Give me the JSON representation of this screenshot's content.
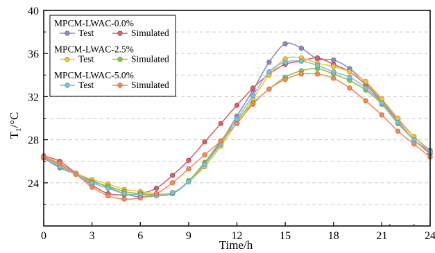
{
  "chart_data": {
    "type": "line",
    "xlabel": "Time/h",
    "ylabel": "T1/°C",
    "ylabel_main": "T",
    "ylabel_sub": "1",
    "ylabel_unit": "/°C",
    "xlim": [
      0,
      24
    ],
    "ylim": [
      20,
      40
    ],
    "xticks": [
      0,
      3,
      6,
      9,
      12,
      15,
      18,
      21,
      24
    ],
    "yticks": [
      24,
      28,
      32,
      36,
      40
    ],
    "grid": true,
    "legend_placement": "top-left",
    "x": [
      0,
      1,
      2,
      3,
      4,
      5,
      6,
      7,
      8,
      9,
      10,
      11,
      12,
      13,
      14,
      15,
      16,
      17,
      18,
      19,
      20,
      21,
      22,
      23,
      24
    ],
    "groups": [
      {
        "label": "MPCM-LWAC-0.0%",
        "series": [
          {
            "name": "Test",
            "color": "#8c8cbf",
            "values": [
              26.3,
              25.4,
              24.8,
              24.2,
              23.6,
              23.0,
              22.7,
              22.8,
              23.0,
              24.1,
              25.8,
              27.8,
              30.2,
              32.6,
              35.2,
              36.9,
              36.5,
              35.5,
              35.4,
              34.6,
              33.3,
              31.7,
              29.9,
              28.3,
              27.0
            ]
          },
          {
            "name": "Simulated",
            "color": "#d9606a",
            "values": [
              26.5,
              26.0,
              24.9,
              23.8,
              23.0,
              22.9,
              23.0,
              23.5,
              24.7,
              26.1,
              27.8,
              29.5,
              31.2,
              32.8,
              34.1,
              35.0,
              35.3,
              35.6,
              35.0,
              34.3,
              33.1,
              31.5,
              29.7,
              28.0,
              26.7
            ]
          }
        ]
      },
      {
        "label": "MPCM-LWAC-2.5%",
        "series": [
          {
            "name": "Test",
            "color": "#f2c630",
            "values": [
              26.4,
              25.6,
              24.9,
              24.3,
              23.9,
              23.4,
              23.2,
              23.0,
              23.1,
              24.1,
              25.5,
              27.4,
              29.6,
              31.8,
              34.0,
              35.5,
              35.6,
              35.1,
              34.8,
              34.3,
              33.4,
              31.8,
              30.0,
              28.3,
              26.9
            ]
          },
          {
            "name": "Simulated",
            "color": "#8cc63f",
            "values": [
              26.3,
              25.7,
              24.8,
              24.1,
              23.7,
              23.2,
              23.0,
              22.9,
              23.0,
              24.2,
              25.9,
              27.9,
              29.8,
              31.4,
              32.7,
              33.8,
              34.4,
              34.6,
              34.1,
              33.5,
              32.6,
              31.3,
              29.5,
              28.0,
              26.9
            ]
          }
        ]
      },
      {
        "label": "MPCM-LWAC-5.0%",
        "series": [
          {
            "name": "Test",
            "color": "#7ec0e0",
            "values": [
              26.4,
              25.5,
              24.8,
              24.0,
              23.5,
              23.0,
              22.9,
              22.8,
              23.1,
              24.1,
              25.7,
              27.6,
              29.9,
              32.1,
              34.3,
              35.2,
              35.3,
              34.9,
              34.3,
              33.8,
              32.8,
              31.4,
              29.6,
              28.0,
              26.9
            ]
          },
          {
            "name": "Simulated",
            "color": "#f08c5a",
            "values": [
              26.4,
              25.8,
              24.8,
              23.6,
              22.8,
              22.5,
              22.6,
              23.0,
              24.0,
              25.3,
              26.6,
              27.9,
              29.5,
              31.3,
              32.7,
              33.6,
              34.1,
              34.1,
              33.7,
              32.8,
              31.6,
              30.3,
              28.8,
              27.6,
              26.4
            ]
          }
        ]
      }
    ]
  }
}
